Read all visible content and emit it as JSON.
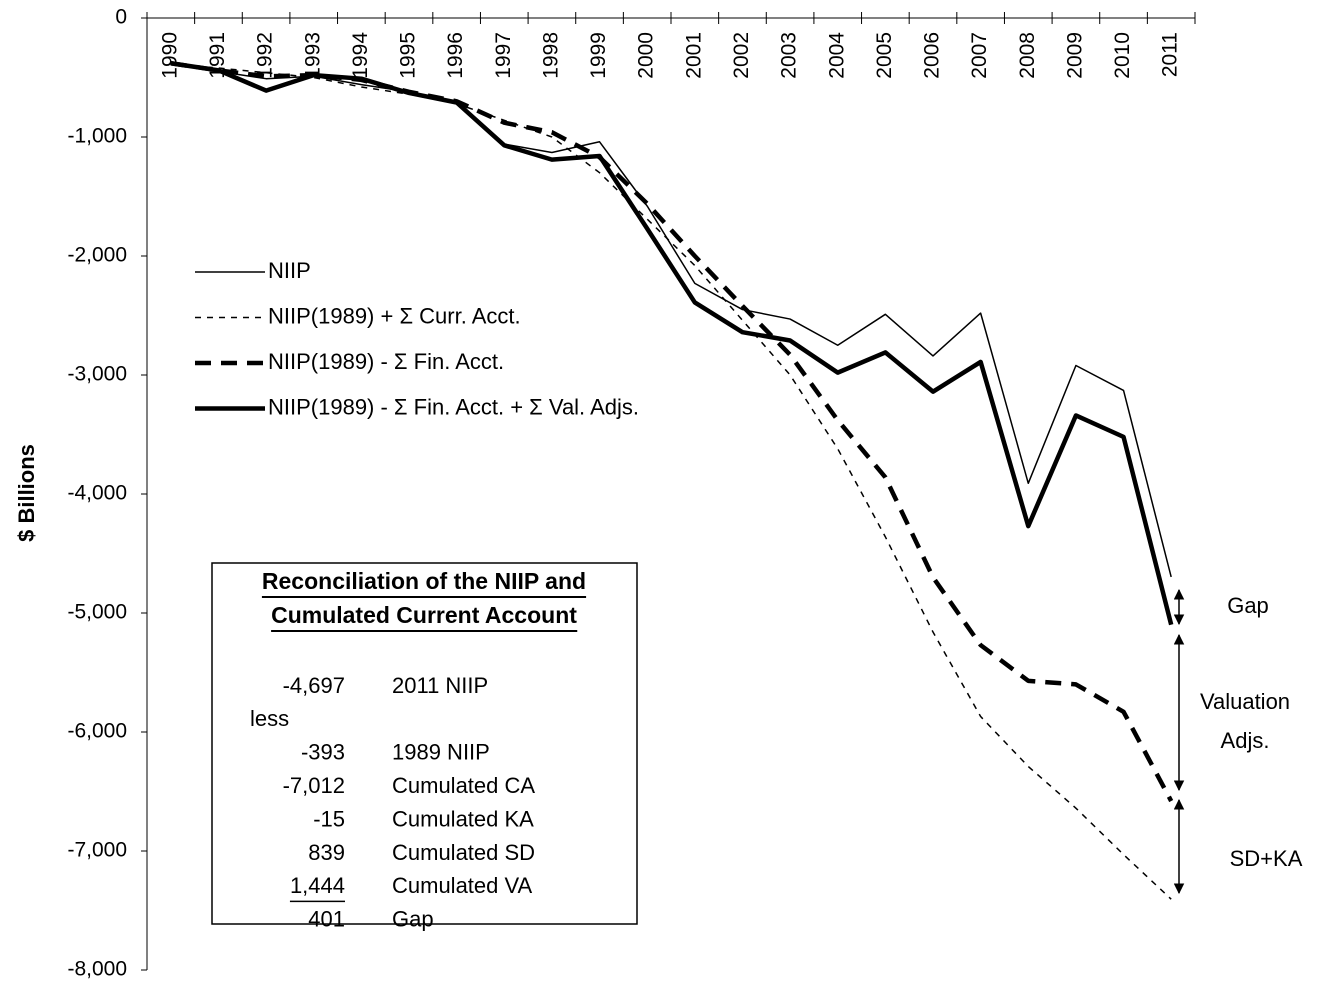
{
  "chart_data": {
    "type": "line",
    "y_label": "$ Billions",
    "categories": [
      "1990",
      "1991",
      "1992",
      "1993",
      "1994",
      "1995",
      "1996",
      "1997",
      "1998",
      "1999",
      "2000",
      "2001",
      "2002",
      "2003",
      "2004",
      "2005",
      "2006",
      "2007",
      "2008",
      "2009",
      "2010",
      "2011"
    ],
    "ylim": [
      -8000,
      0
    ],
    "yticks": [
      {
        "value": -8000,
        "label": "-8,000"
      },
      {
        "value": -7000,
        "label": "-7,000"
      },
      {
        "value": -6000,
        "label": "-6,000"
      },
      {
        "value": -5000,
        "label": "-5,000"
      },
      {
        "value": -4000,
        "label": "-4,000"
      },
      {
        "value": -3000,
        "label": "-3,000"
      },
      {
        "value": -2000,
        "label": "-2,000"
      },
      {
        "value": -1000,
        "label": "-1,000"
      },
      0
    ],
    "series": [
      {
        "name": "NIIP",
        "color": "#000000",
        "line_style": "solid",
        "line_weight": "thin",
        "values": [
          -390,
          -450,
          -510,
          -490,
          -560,
          -620,
          -710,
          -1060,
          -1130,
          -1040,
          -1580,
          -2230,
          -2450,
          -2530,
          -2750,
          -2490,
          -2840,
          -2480,
          -3910,
          -2920,
          -3130,
          -4697
        ]
      },
      {
        "name": "NIIP(1989) + Σ Curr. Acct.",
        "color": "#000000",
        "line_style": "dashed",
        "line_weight": "thin",
        "values": [
          -390,
          -420,
          -460,
          -500,
          -580,
          -640,
          -720,
          -860,
          -1000,
          -1300,
          -1690,
          -2080,
          -2540,
          -3000,
          -3620,
          -4360,
          -5160,
          -5870,
          -6290,
          -6640,
          -7030,
          -7405
        ]
      },
      {
        "name": "NIIP(1989) - Σ Fin. Acct.",
        "color": "#000000",
        "line_style": "dashed",
        "line_weight": "thick",
        "values": [
          -380,
          -440,
          -490,
          -480,
          -520,
          -620,
          -700,
          -880,
          -960,
          -1170,
          -1560,
          -2000,
          -2420,
          -2830,
          -3380,
          -3860,
          -4700,
          -5270,
          -5570,
          -5600,
          -5830,
          -6580
        ]
      },
      {
        "name": "NIIP(1989) - Σ Fin. Acct. + Σ Val. Adjs.",
        "color": "#000000",
        "line_style": "solid",
        "line_weight": "thick",
        "values": [
          -380,
          -440,
          -610,
          -480,
          -510,
          -630,
          -710,
          -1070,
          -1190,
          -1160,
          -1770,
          -2390,
          -2640,
          -2710,
          -2980,
          -2810,
          -3140,
          -2890,
          -4270,
          -3340,
          -3520,
          -5098
        ]
      }
    ],
    "reconciliation": {
      "title_lines": [
        "Reconciliation of the NIIP and",
        "Cumulated Current Account"
      ],
      "rows": [
        {
          "amount": "-4,697",
          "label": "2011 NIIP"
        },
        {
          "note": "less"
        },
        {
          "amount": "-393",
          "label": "1989 NIIP"
        },
        {
          "amount": "-7,012",
          "label": "Cumulated CA"
        },
        {
          "amount": "-15",
          "label": "Cumulated KA"
        },
        {
          "amount": "839",
          "label": "Cumulated SD"
        },
        {
          "amount": "1,444",
          "label": "Cumulated VA",
          "underline": true
        },
        {
          "amount": "401",
          "label": "Gap"
        }
      ]
    },
    "annotations": [
      {
        "lines": [
          "Gap"
        ]
      },
      {
        "lines": [
          "Valuation",
          "Adjs."
        ]
      },
      {
        "lines": [
          "SD+KA"
        ]
      }
    ]
  }
}
